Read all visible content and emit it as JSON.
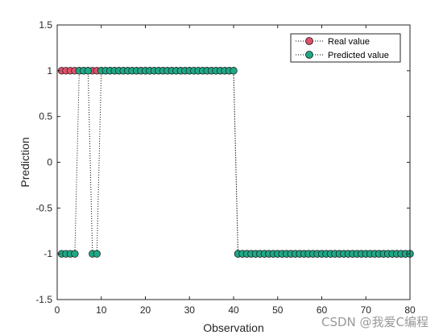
{
  "chart_data": {
    "type": "line",
    "title": "",
    "xlabel": "Observation",
    "ylabel": "Prediction",
    "xlim": [
      0,
      80
    ],
    "ylim": [
      -1.5,
      1.5
    ],
    "x_ticks": [
      0,
      10,
      20,
      30,
      40,
      50,
      60,
      70,
      80
    ],
    "y_ticks": [
      -1.5,
      -1,
      -0.5,
      0,
      0.5,
      1,
      1.5
    ],
    "y_tick_labels": [
      "-1.5",
      "-1",
      "-0.5",
      "0",
      "0.5",
      "1",
      "1.5"
    ],
    "grid": false,
    "legend_position": "top-right",
    "x": [
      1,
      2,
      3,
      4,
      5,
      6,
      7,
      8,
      9,
      10,
      11,
      12,
      13,
      14,
      15,
      16,
      17,
      18,
      19,
      20,
      21,
      22,
      23,
      24,
      25,
      26,
      27,
      28,
      29,
      30,
      31,
      32,
      33,
      34,
      35,
      36,
      37,
      38,
      39,
      40,
      41,
      42,
      43,
      44,
      45,
      46,
      47,
      48,
      49,
      50,
      51,
      52,
      53,
      54,
      55,
      56,
      57,
      58,
      59,
      60,
      61,
      62,
      63,
      64,
      65,
      66,
      67,
      68,
      69,
      70,
      71,
      72,
      73,
      74,
      75,
      76,
      77,
      78,
      79,
      80
    ],
    "series": [
      {
        "name": "Real value",
        "color": "#e0506a",
        "values": [
          1,
          1,
          1,
          1,
          1,
          1,
          1,
          1,
          1,
          1,
          1,
          1,
          1,
          1,
          1,
          1,
          1,
          1,
          1,
          1,
          1,
          1,
          1,
          1,
          1,
          1,
          1,
          1,
          1,
          1,
          1,
          1,
          1,
          1,
          1,
          1,
          1,
          1,
          1,
          1,
          -1,
          -1,
          -1,
          -1,
          -1,
          -1,
          -1,
          -1,
          -1,
          -1,
          -1,
          -1,
          -1,
          -1,
          -1,
          -1,
          -1,
          -1,
          -1,
          -1,
          -1,
          -1,
          -1,
          -1,
          -1,
          -1,
          -1,
          -1,
          -1,
          -1,
          -1,
          -1,
          -1,
          -1,
          -1,
          -1,
          -1,
          -1,
          -1,
          -1
        ]
      },
      {
        "name": "Predicted value",
        "color": "#1fa886",
        "values": [
          -1,
          -1,
          -1,
          -1,
          1,
          1,
          1,
          -1,
          -1,
          1,
          1,
          1,
          1,
          1,
          1,
          1,
          1,
          1,
          1,
          1,
          1,
          1,
          1,
          1,
          1,
          1,
          1,
          1,
          1,
          1,
          1,
          1,
          1,
          1,
          1,
          1,
          1,
          1,
          1,
          1,
          -1,
          -1,
          -1,
          -1,
          -1,
          -1,
          -1,
          -1,
          -1,
          -1,
          -1,
          -1,
          -1,
          -1,
          -1,
          -1,
          -1,
          -1,
          -1,
          -1,
          -1,
          -1,
          -1,
          -1,
          -1,
          -1,
          -1,
          -1,
          -1,
          -1,
          -1,
          -1,
          -1,
          -1,
          -1,
          -1,
          -1,
          -1,
          -1,
          -1
        ]
      }
    ]
  },
  "watermark": "CSDN @我爱C编程"
}
